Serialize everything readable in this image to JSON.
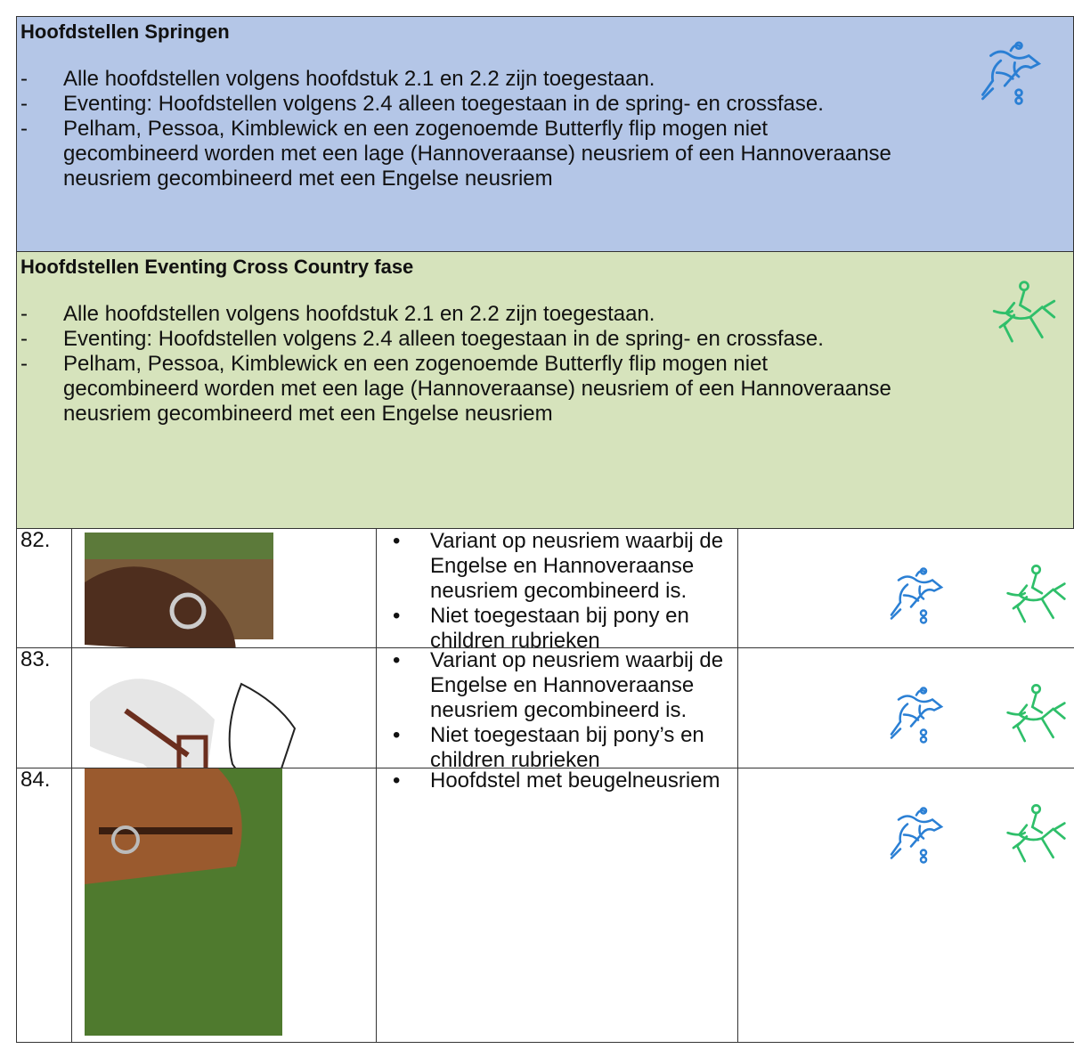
{
  "sections": [
    {
      "title": "Hoofdstellen Springen",
      "bullets": [
        "Alle hoofdstellen volgens hoofdstuk 2.1 en 2.2 zijn toegestaan.",
        "Eventing: Hoofdstellen volgens 2.4 alleen toegestaan in de spring- en crossfase.",
        "Pelham, Pessoa, Kimblewick en een zogenoemde Butterfly flip mogen niet gecombineerd worden met een lage (Hannoveraanse) neusriem of een Hannoveraanse neusriem gecombineerd met een Engelse neusriem"
      ]
    },
    {
      "title": "Hoofdstellen Eventing Cross Country fase",
      "bullets": [
        "Alle hoofdstellen volgens hoofdstuk 2.1 en 2.2 zijn toegestaan.",
        "Eventing: Hoofdstellen volgens 2.4 alleen toegestaan in de spring- en crossfase.",
        "Pelham, Pessoa, Kimblewick en een zogenoemde Butterfly flip mogen niet gecombineerd worden met een lage (Hannoveraanse) neusriem of een Hannoveraanse neusriem gecombineerd met een Engelse neusriem"
      ]
    }
  ],
  "table": {
    "rows": [
      {
        "number": "82.",
        "bullets": [
          "Variant op neusriem waarbij de Engelse en Hannoveraanse neusriem gecombineerd is.",
          "Niet toegestaan bij pony en children rubrieken"
        ]
      },
      {
        "number": "83.",
        "bullets": [
          "Variant op neusriem waarbij de Engelse en Hannoveraanse neusriem gecombineerd is.",
          "Niet toegestaan bij pony’s en children rubrieken"
        ]
      },
      {
        "number": "84.",
        "bullets": [
          "Hoofdstel met beugelneusriem"
        ]
      }
    ]
  }
}
